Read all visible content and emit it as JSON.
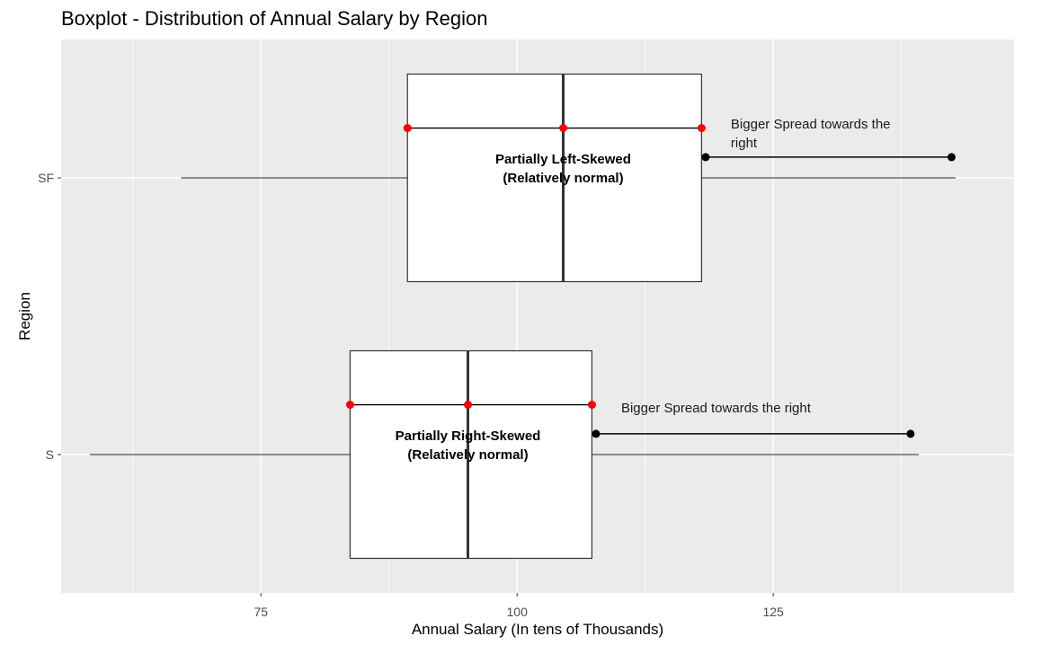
{
  "chart_data": {
    "type": "boxplot",
    "orientation": "horizontal",
    "title": "Boxplot - Distribution of Annual Salary by Region",
    "xlabel": "Annual Salary (In tens of Thousands)",
    "ylabel": "Region",
    "xlim": [
      55.5,
      148.5
    ],
    "xticks": [
      75,
      100,
      125
    ],
    "xtick_labels": [
      "75",
      "100",
      "125"
    ],
    "grid": true,
    "categories": [
      "SF",
      "S"
    ],
    "boxes": [
      {
        "category": "SF",
        "whisker_low": 67.2,
        "q1": 89.3,
        "median": 104.5,
        "q3": 118.0,
        "whisker_high": 142.8,
        "label_lines": [
          "Partially Left-Skewed",
          "(Relatively normal)"
        ],
        "annotation_lines": [
          "Bigger Spread towards the",
          "right"
        ],
        "arrow_segment": [
          118.4,
          142.4
        ]
      },
      {
        "category": "S",
        "whisker_low": 58.3,
        "q1": 83.7,
        "median": 95.2,
        "q3": 107.3,
        "whisker_high": 139.2,
        "label_lines": [
          "Partially Right-Skewed",
          "(Relatively normal)"
        ],
        "annotation_lines": [
          "Bigger Spread towards the right"
        ],
        "arrow_segment": [
          107.7,
          138.4
        ]
      }
    ]
  },
  "colors": {
    "panel_background": "#ebebeb",
    "grid": "#ffffff",
    "box_fill": "#ffffff",
    "box_border": "#333333",
    "median_line": "#333333",
    "whisker": "#4d4d4d",
    "quartile_points": "#ff0000",
    "annotation_segment": "#000000"
  }
}
